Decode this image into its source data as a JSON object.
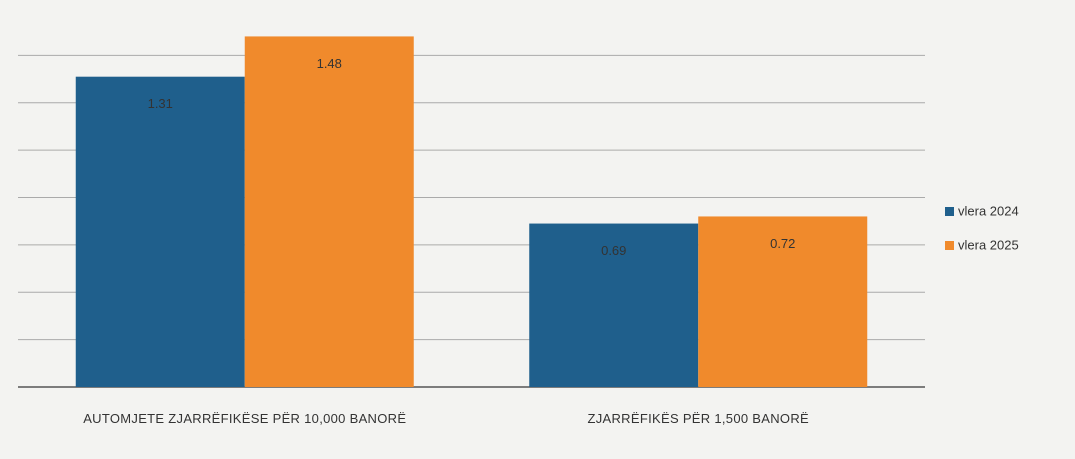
{
  "chart_data": {
    "type": "bar",
    "categories": [
      "AUTOMJETE ZJARRËFIKËSE PËR 10,000 BANORË",
      "ZJARRËFIKËS PËR 1,500 BANORË"
    ],
    "series": [
      {
        "name": "vlera 2024",
        "color": "#1f5f8c",
        "values": [
          1.31,
          0.69
        ]
      },
      {
        "name": "vlera 2025",
        "color": "#f08a2c",
        "values": [
          1.48,
          0.72
        ]
      }
    ],
    "ylim": [
      0,
      1.6
    ],
    "yticks": [
      0,
      0.2,
      0.4,
      0.6,
      0.8,
      1,
      1.2,
      1.4
    ],
    "grid": true,
    "legend": "right"
  }
}
